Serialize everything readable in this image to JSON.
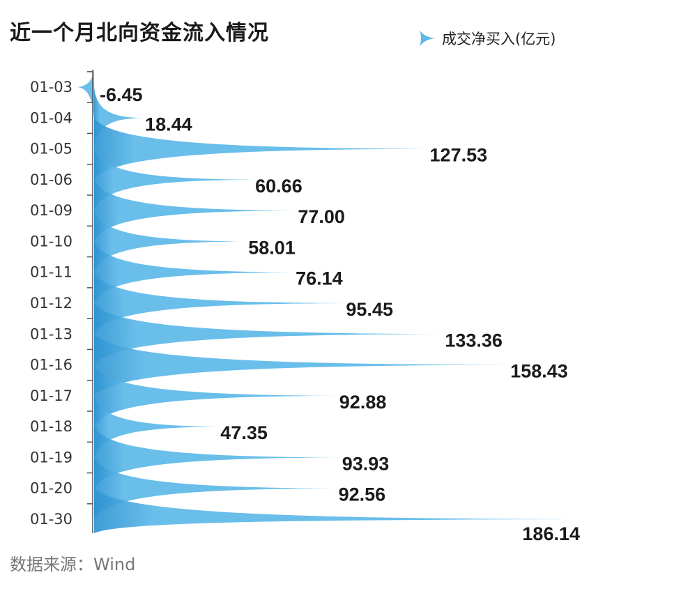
{
  "header": {
    "title": "近一个月北向资金流入情况",
    "source": "数据来源：Wind"
  },
  "chart_data": {
    "type": "bar",
    "orientation": "horizontal",
    "categories": [
      "01-03",
      "01-04",
      "01-05",
      "01-06",
      "01-09",
      "01-10",
      "01-11",
      "01-12",
      "01-13",
      "01-16",
      "01-17",
      "01-18",
      "01-19",
      "01-20",
      "01-30"
    ],
    "series": [
      {
        "name": "成交净买入(亿元)",
        "values": [
          -6.45,
          18.44,
          127.53,
          60.66,
          77.0,
          58.01,
          76.14,
          95.45,
          133.36,
          158.43,
          92.88,
          47.35,
          93.93,
          92.56,
          186.14
        ],
        "labels": [
          "-6.45",
          "18.44",
          "127.53",
          "60.66",
          "77.00",
          "58.01",
          "76.14",
          "95.45",
          "133.36",
          "158.43",
          "92.88",
          "47.35",
          "93.93",
          "92.56",
          "186.14"
        ]
      }
    ],
    "legend_position": "top-right",
    "grid": false,
    "color": "#5cb8e8",
    "color_dark": "#2f94d2"
  }
}
